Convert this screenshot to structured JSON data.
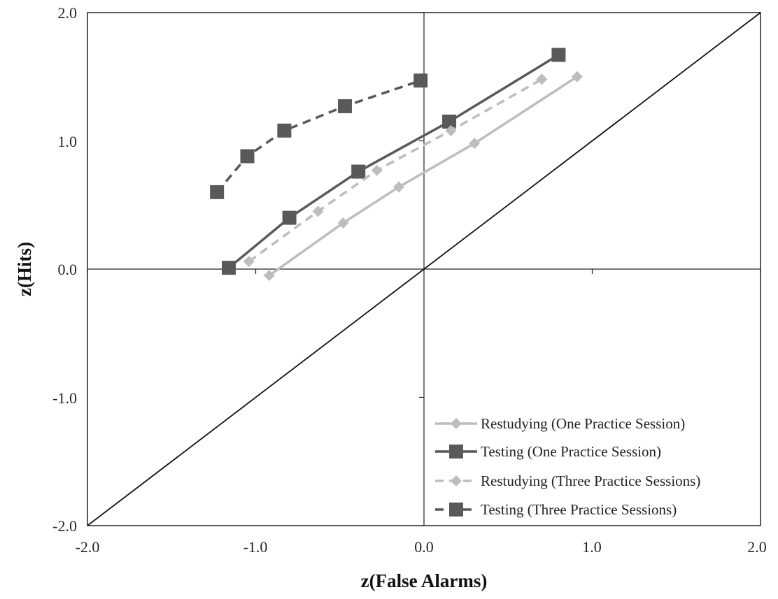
{
  "chart_data": {
    "type": "line",
    "xlabel": "z(False Alarms)",
    "ylabel": "z(Hits)",
    "xlim": [
      -2.0,
      2.0
    ],
    "ylim": [
      -2.0,
      2.0
    ],
    "x_ticks": [
      "-2.0",
      "-1.0",
      "0.0",
      "1.0",
      "2.0"
    ],
    "y_ticks": [
      "2.0",
      "1.0",
      "0.0",
      "-1.0",
      "-2.0"
    ],
    "grid": false,
    "reference_line": {
      "from": [
        -2.0,
        -2.0
      ],
      "to": [
        2.0,
        2.0
      ]
    },
    "legend_position": "bottom-right",
    "series": [
      {
        "name": "Restudying (One Practice Session)",
        "marker": "diamond",
        "line": "solid",
        "color": "#bdbdbd",
        "x": [
          -0.92,
          -0.48,
          -0.15,
          0.3,
          0.91
        ],
        "y": [
          -0.05,
          0.36,
          0.64,
          0.98,
          1.5
        ]
      },
      {
        "name": "Testing (One Practice Session)",
        "marker": "square",
        "line": "solid",
        "color": "#595959",
        "x": [
          -1.16,
          -0.8,
          -0.39,
          0.15,
          0.8
        ],
        "y": [
          0.01,
          0.4,
          0.76,
          1.15,
          1.67
        ]
      },
      {
        "name": "Restudying (Three Practice Sessions)",
        "marker": "diamond",
        "line": "dashed",
        "color": "#bdbdbd",
        "x": [
          -1.04,
          -0.63,
          -0.28,
          0.16,
          0.7
        ],
        "y": [
          0.06,
          0.45,
          0.77,
          1.08,
          1.48
        ]
      },
      {
        "name": "Testing (Three Practice Sessions)",
        "marker": "square",
        "line": "dashed",
        "color": "#595959",
        "x": [
          -1.23,
          -1.05,
          -0.83,
          -0.47,
          -0.02
        ],
        "y": [
          0.6,
          0.88,
          1.08,
          1.27,
          1.47
        ]
      }
    ]
  }
}
